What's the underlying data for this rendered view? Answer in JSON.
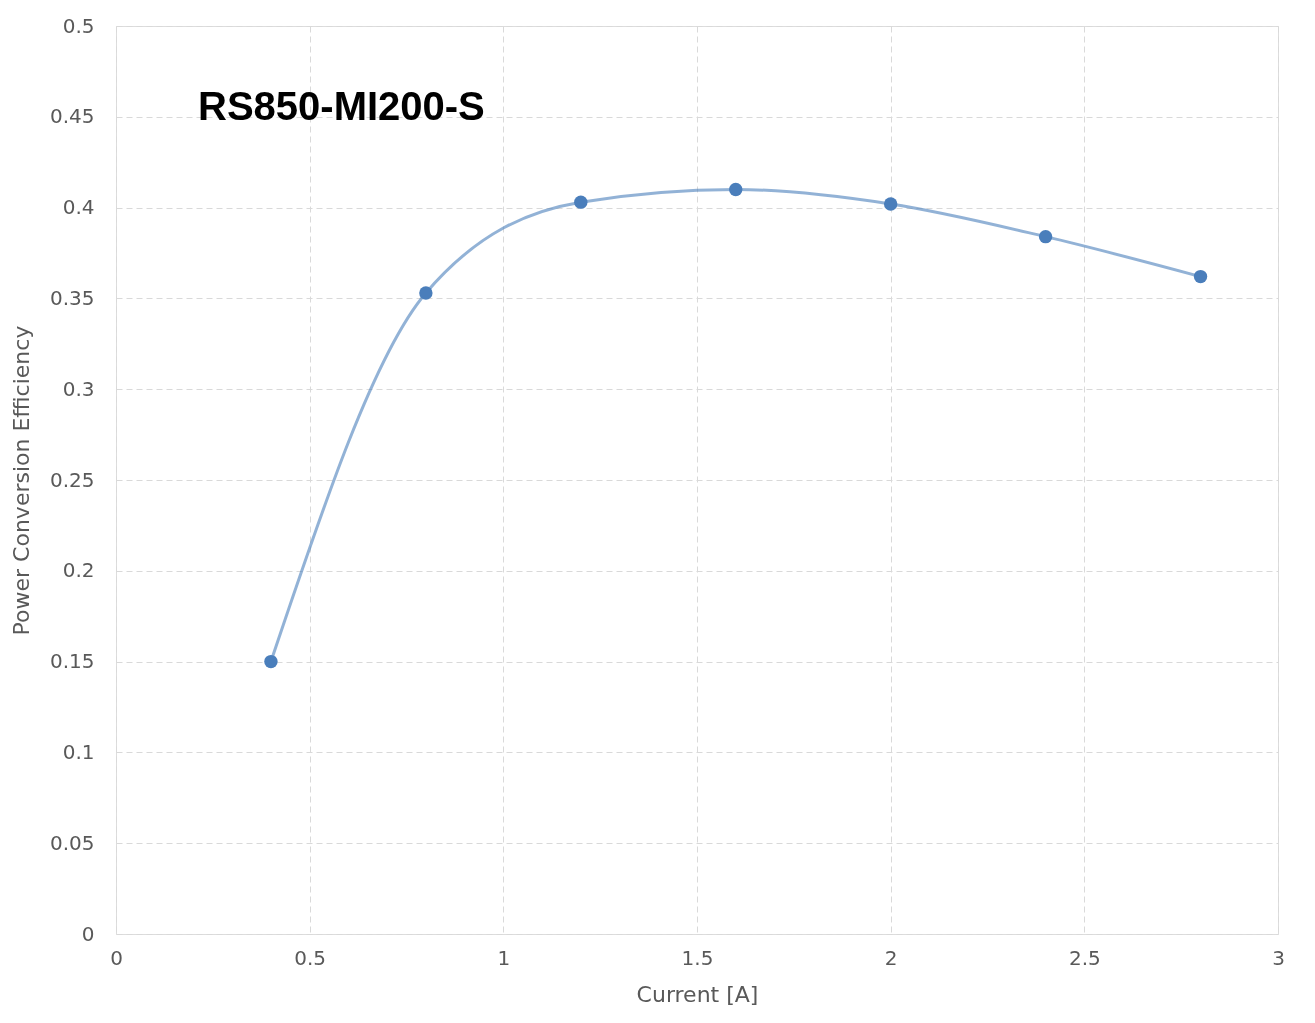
{
  "chart_data": {
    "type": "line",
    "title": "RS850-MI200-S",
    "xlabel": "Current [A]",
    "ylabel": "Power Conversion Efficiency",
    "x": [
      0.4,
      0.8,
      1.2,
      1.6,
      2.0,
      2.4,
      2.8
    ],
    "series": [
      {
        "color": "#4a7ebb",
        "values": [
          0.15,
          0.353,
          0.403,
          0.41,
          0.402,
          0.384,
          0.362
        ]
      }
    ],
    "xlim": [
      0,
      3
    ],
    "xticks": [
      0,
      0.5,
      1,
      1.5,
      2,
      2.5,
      3
    ],
    "ylim": [
      0,
      0.5
    ],
    "yticks": [
      0,
      0.05,
      0.1,
      0.15,
      0.2,
      0.25,
      0.3,
      0.35,
      0.4,
      0.45,
      0.5
    ],
    "grid": true,
    "marker": "circle",
    "line_style": "solid"
  }
}
